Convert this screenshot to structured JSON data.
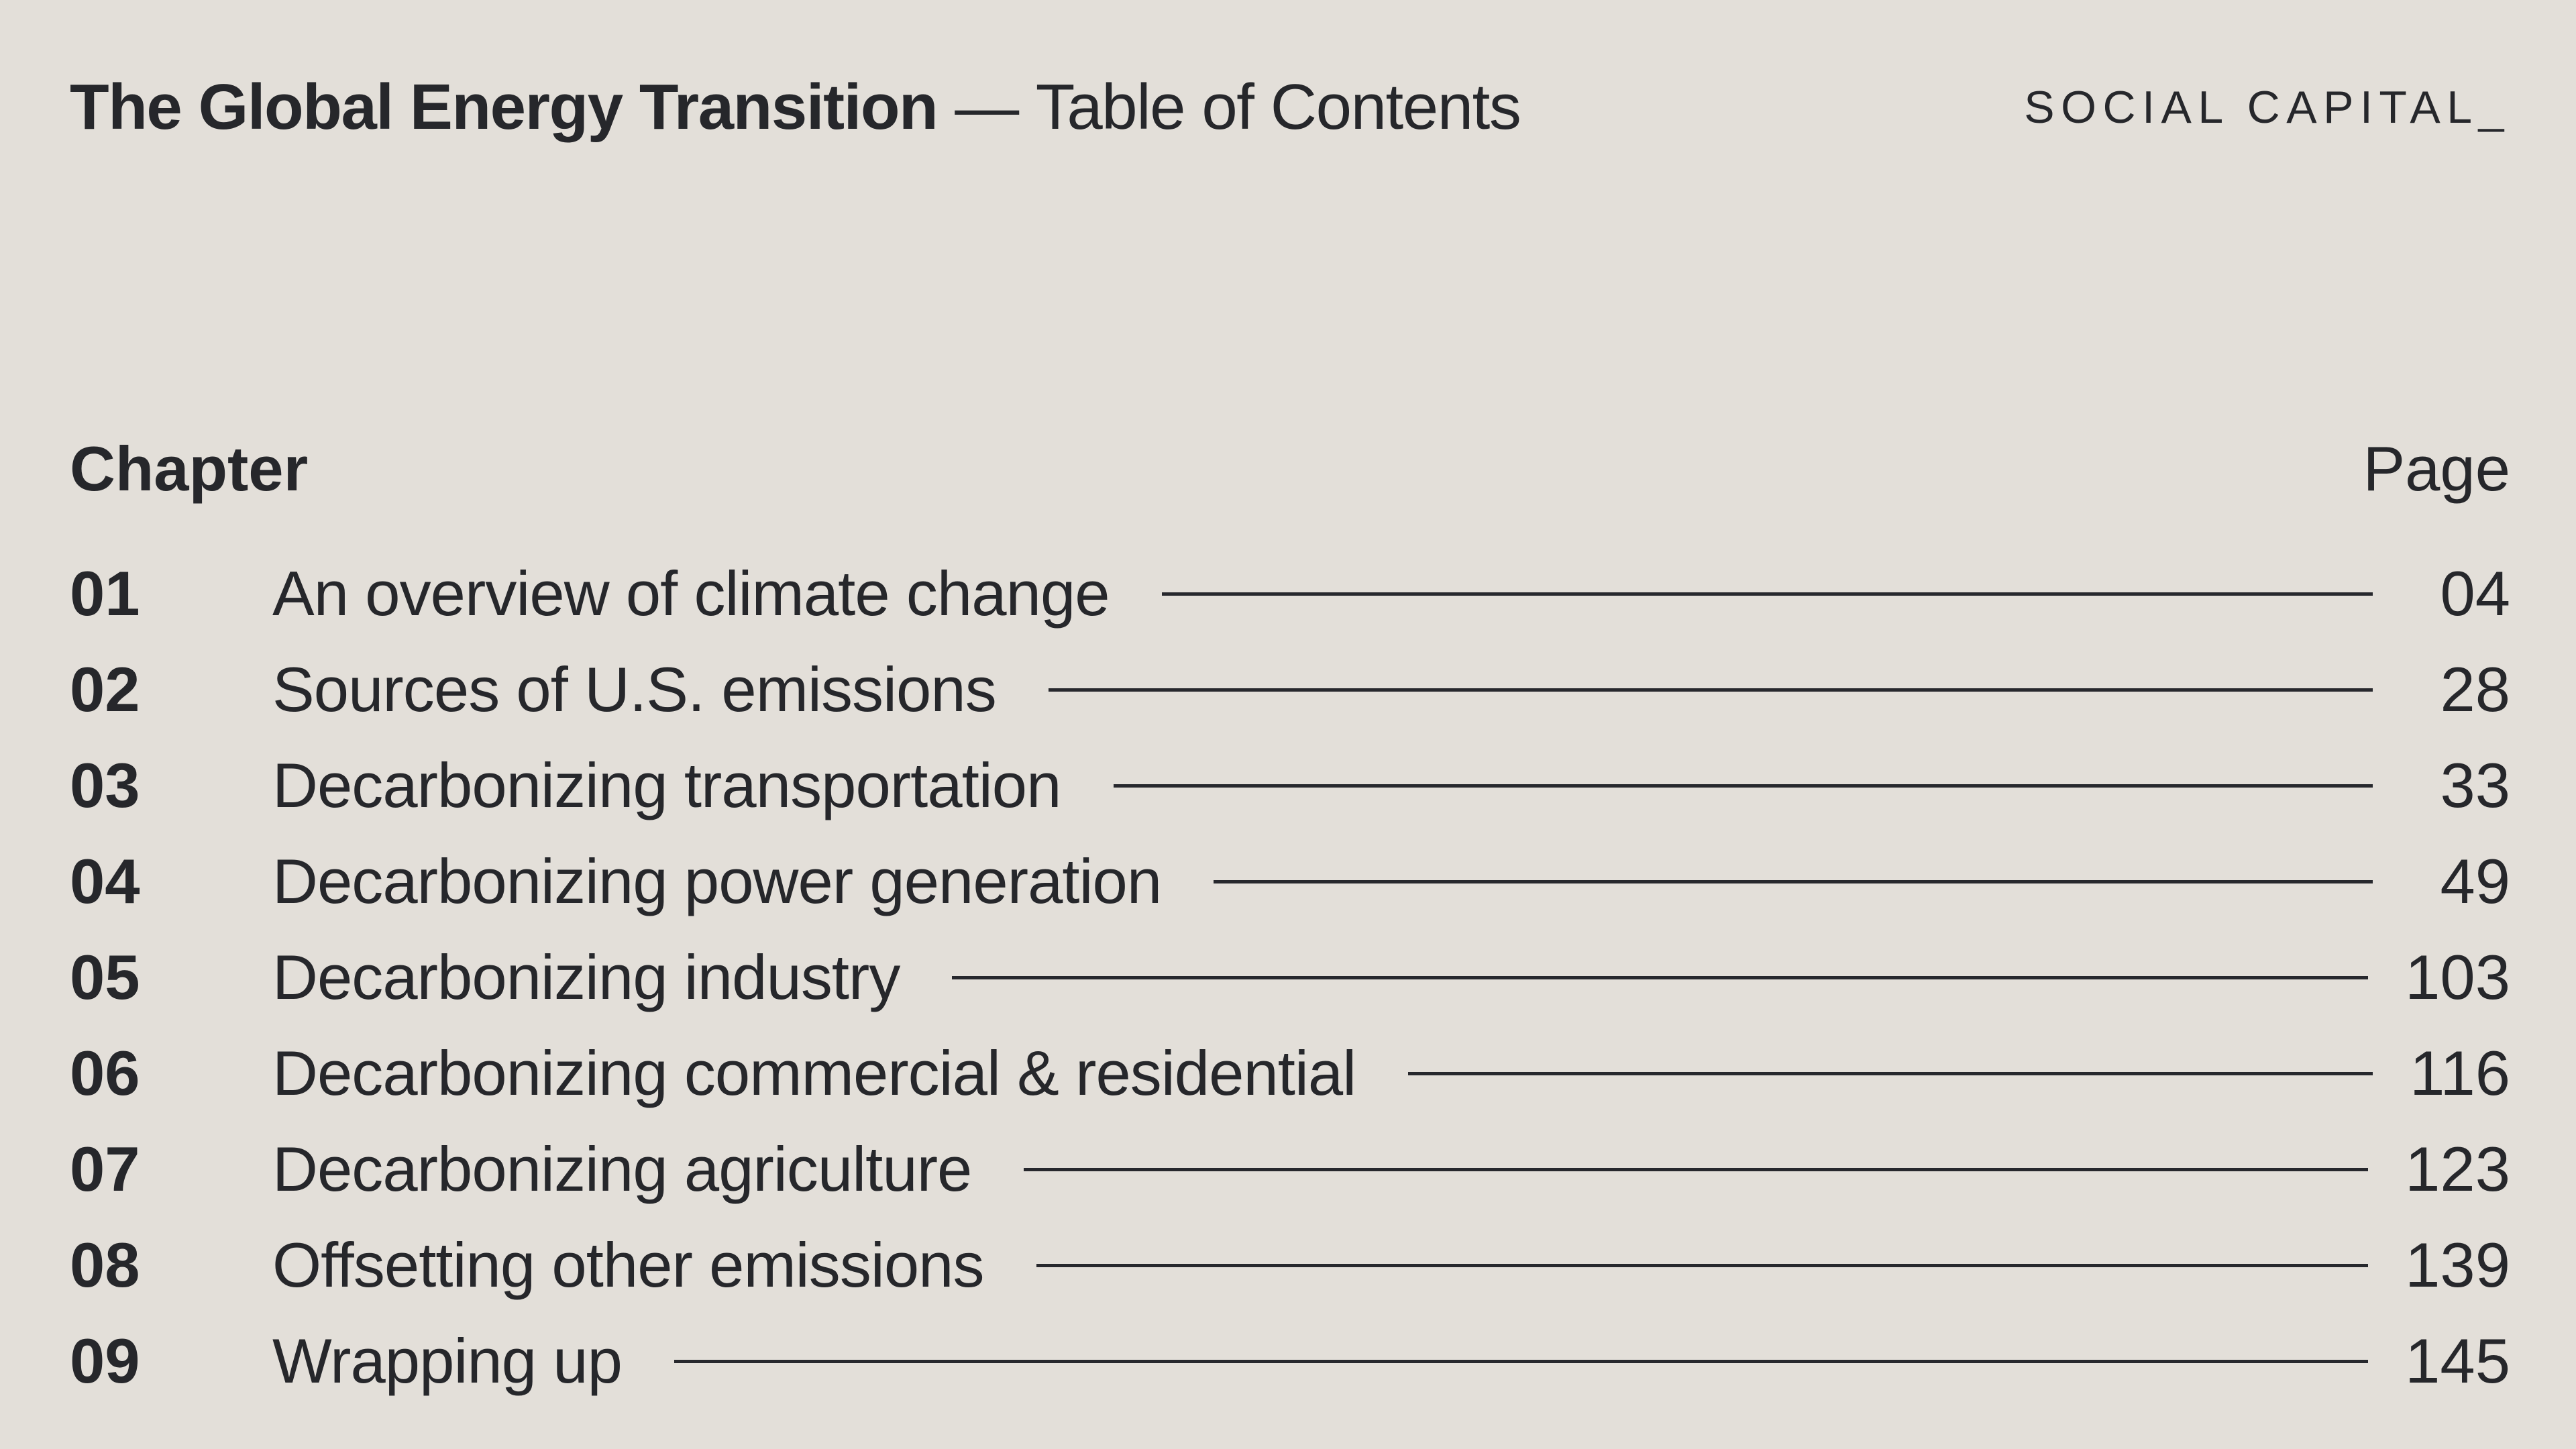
{
  "page": {
    "title_bold": "The Global Energy Transition",
    "title_separator": "—",
    "title_regular": "Table of Contents",
    "logo_text": "SOCIAL CAPITAL_",
    "colors": {
      "background": "#e3dfd9",
      "text": "#26272b",
      "leader_line": "#27282d"
    }
  },
  "toc": {
    "chapter_header": "Chapter",
    "page_header": "Page",
    "entries": [
      {
        "number": "01",
        "title": "An overview of climate change",
        "page": "04"
      },
      {
        "number": "02",
        "title": "Sources of U.S. emissions",
        "page": "28"
      },
      {
        "number": "03",
        "title": "Decarbonizing transportation",
        "page": "33"
      },
      {
        "number": "04",
        "title": "Decarbonizing power generation",
        "page": "49"
      },
      {
        "number": "05",
        "title": "Decarbonizing industry",
        "page": "103"
      },
      {
        "number": "06",
        "title": "Decarbonizing commercial & residential",
        "page": "116"
      },
      {
        "number": "07",
        "title": "Decarbonizing agriculture",
        "page": "123"
      },
      {
        "number": "08",
        "title": "Offsetting other emissions",
        "page": "139"
      },
      {
        "number": "09",
        "title": "Wrapping up",
        "page": "145"
      }
    ]
  }
}
